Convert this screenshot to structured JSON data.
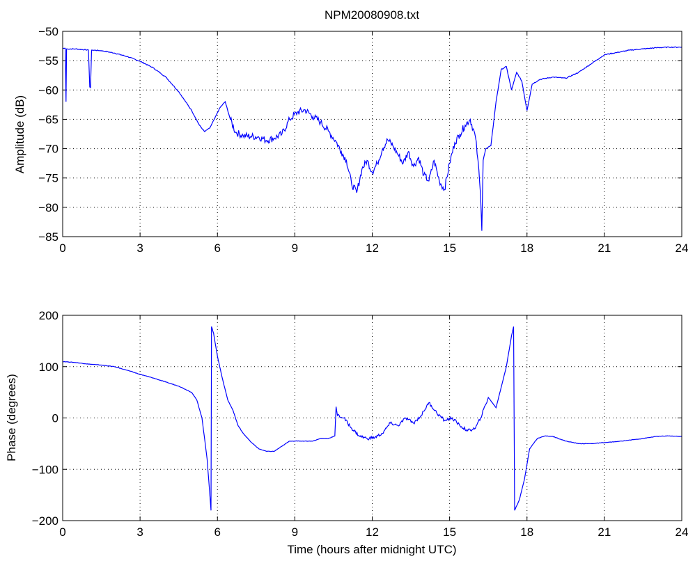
{
  "chart_data": [
    {
      "type": "line",
      "title": "NPM20080908.txt",
      "xlabel": "",
      "ylabel": "Amplitude (dB)",
      "xlim": [
        0,
        24
      ],
      "ylim": [
        -85,
        -50
      ],
      "xticks": [
        "0",
        "3",
        "6",
        "9",
        "12",
        "15",
        "18",
        "21",
        "24"
      ],
      "yticks": [
        "-85",
        "-80",
        "-75",
        "-70",
        "-65",
        "-60",
        "-55",
        "-50"
      ],
      "grid": true,
      "line_color": "#0000ff",
      "series": [
        {
          "x": [
            0,
            0.1,
            0.13,
            0.15,
            0.17,
            0.2,
            0.5,
            1.0,
            1.05,
            1.08,
            1.12,
            1.15,
            1.5,
            2.0,
            2.5,
            3.0,
            3.5,
            4.0,
            4.5,
            5.0,
            5.3,
            5.5,
            5.7,
            5.9,
            6.1,
            6.3,
            6.5,
            6.7,
            7.0,
            7.3,
            7.6,
            7.9,
            8.2,
            8.5,
            8.8,
            9.1,
            9.4,
            9.7,
            10.0,
            10.3,
            10.6,
            10.8,
            11.0,
            11.2,
            11.4,
            11.6,
            11.8,
            12.0,
            12.2,
            12.4,
            12.6,
            12.8,
            13.0,
            13.2,
            13.4,
            13.6,
            13.8,
            14.0,
            14.2,
            14.4,
            14.6,
            14.8,
            15.0,
            15.2,
            15.4,
            15.6,
            15.8,
            16.0,
            16.1,
            16.2,
            16.25,
            16.3,
            16.4,
            16.6,
            16.8,
            17.0,
            17.2,
            17.4,
            17.6,
            17.8,
            18.0,
            18.2,
            18.5,
            19.0,
            19.5,
            20.0,
            20.5,
            21.0,
            21.5,
            22.0,
            22.5,
            23.0,
            23.5,
            24.0
          ],
          "values": [
            -52.9,
            -52.9,
            -62.0,
            -53.0,
            -53.0,
            -53.0,
            -53.0,
            -53.2,
            -59.5,
            -59.6,
            -53.2,
            -53.2,
            -53.3,
            -53.7,
            -54.3,
            -55.1,
            -56.2,
            -57.8,
            -60.3,
            -63.5,
            -66.0,
            -67.1,
            -66.5,
            -64.8,
            -63.0,
            -62.0,
            -65.0,
            -67.2,
            -67.8,
            -67.9,
            -68.0,
            -68.6,
            -68.2,
            -67.5,
            -65.0,
            -63.8,
            -63.4,
            -64.5,
            -65.5,
            -67.0,
            -68.8,
            -70.5,
            -72.0,
            -76.0,
            -77.5,
            -73.5,
            -72.0,
            -74.0,
            -72.5,
            -70.0,
            -68.5,
            -69.5,
            -71.0,
            -72.5,
            -70.5,
            -73.0,
            -71.5,
            -74.5,
            -75.5,
            -72.0,
            -75.5,
            -77.0,
            -72.5,
            -69.0,
            -67.5,
            -66.0,
            -65.0,
            -68.0,
            -72.0,
            -78.0,
            -84.0,
            -72.0,
            -70.0,
            -69.5,
            -62.0,
            -56.5,
            -56.0,
            -60.0,
            -57.0,
            -58.5,
            -63.5,
            -59.0,
            -58.2,
            -57.8,
            -58.0,
            -57.0,
            -55.5,
            -54.0,
            -53.6,
            -53.2,
            -53.0,
            -52.8,
            -52.7,
            -52.7
          ]
        }
      ]
    },
    {
      "type": "line",
      "title": "",
      "xlabel": "Time (hours after midnight UTC)",
      "ylabel": "Phase (degrees)",
      "xlim": [
        0,
        24
      ],
      "ylim": [
        -200,
        200
      ],
      "xticks": [
        "0",
        "3",
        "6",
        "9",
        "12",
        "15",
        "18",
        "21",
        "24"
      ],
      "yticks": [
        "-200",
        "-100",
        "0",
        "100",
        "200"
      ],
      "grid": true,
      "line_color": "#0000ff",
      "series": [
        {
          "x": [
            0,
            0.5,
            1.0,
            1.5,
            2.0,
            2.5,
            3.0,
            3.5,
            4.0,
            4.5,
            5.0,
            5.2,
            5.4,
            5.6,
            5.75,
            5.77,
            5.85,
            6.0,
            6.2,
            6.4,
            6.6,
            6.8,
            7.0,
            7.3,
            7.6,
            7.9,
            8.2,
            8.5,
            8.8,
            9.1,
            9.4,
            9.7,
            10.0,
            10.3,
            10.55,
            10.6,
            10.65,
            10.9,
            11.2,
            11.5,
            11.8,
            12.1,
            12.4,
            12.7,
            13.0,
            13.3,
            13.6,
            13.9,
            14.2,
            14.5,
            14.8,
            15.1,
            15.4,
            15.7,
            16.0,
            16.2,
            16.5,
            16.8,
            17.0,
            17.2,
            17.4,
            17.48,
            17.52,
            17.7,
            17.9,
            18.1,
            18.4,
            18.7,
            19.0,
            19.5,
            20.0,
            20.5,
            21.0,
            21.5,
            22.0,
            22.5,
            23.0,
            23.5,
            24.0
          ],
          "values": [
            110,
            108,
            105,
            103,
            100,
            93,
            85,
            78,
            70,
            62,
            50,
            35,
            0,
            -80,
            -180,
            178,
            165,
            120,
            75,
            35,
            15,
            -15,
            -30,
            -47,
            -60,
            -65,
            -65,
            -55,
            -45,
            -45,
            -45,
            -45,
            -40,
            -40,
            -35,
            22,
            5,
            0,
            -20,
            -35,
            -40,
            -38,
            -30,
            -10,
            -15,
            0,
            -10,
            5,
            30,
            10,
            -5,
            0,
            -15,
            -25,
            -20,
            0,
            40,
            20,
            60,
            100,
            160,
            178,
            -180,
            -160,
            -120,
            -60,
            -40,
            -35,
            -36,
            -45,
            -50,
            -50,
            -48,
            -46,
            -43,
            -40,
            -36,
            -35,
            -36
          ]
        }
      ]
    }
  ]
}
